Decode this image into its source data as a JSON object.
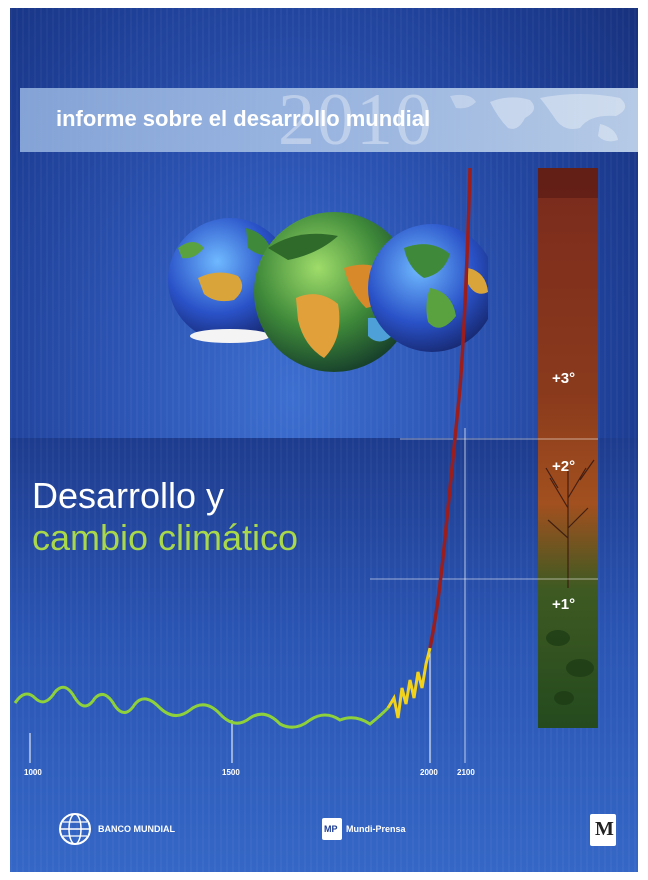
{
  "cover": {
    "series_title": "informe sobre el desarrollo mundial",
    "year": "2010",
    "title_line1": "Desarrollo y",
    "title_line2": "cambio climático"
  },
  "timeline": {
    "ticks": [
      "1000",
      "1500",
      "2000",
      "2100"
    ]
  },
  "temperature_scale": [
    "+3°",
    "+2°",
    "+1°"
  ],
  "publishers": {
    "world_bank": "BANCO MUNDIAL",
    "mundi_prensa": "Mundi-Prensa",
    "mp_logo": "MP",
    "mayol_logo": "M"
  },
  "colors": {
    "background_blue": "#2c55b4",
    "title_green": "#a9d84b",
    "temperature_line_green": "#8ed13a",
    "temperature_line_yellow": "#f2d21b",
    "temperature_line_red": "#9b1e1e"
  }
}
